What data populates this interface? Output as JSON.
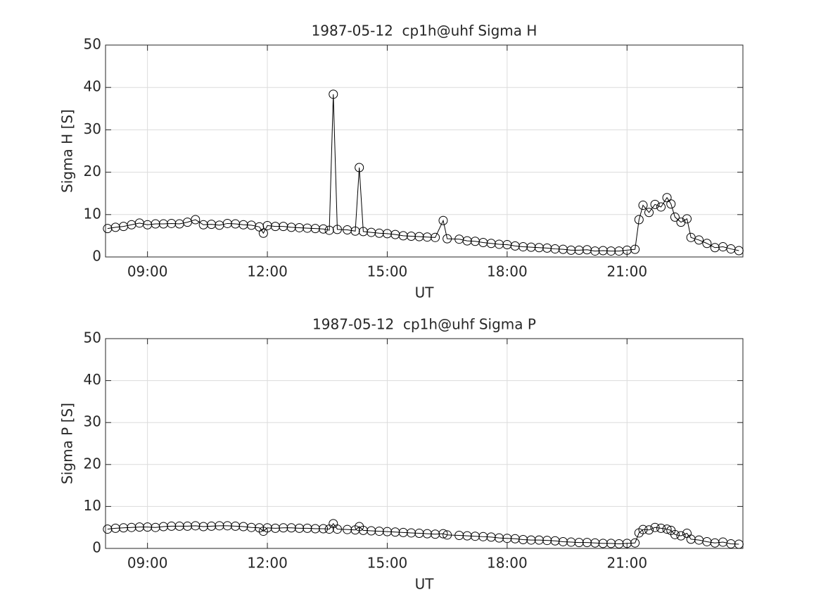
{
  "chart_data": [
    {
      "type": "line",
      "title": "1987-05-12  cp1h@uhf Sigma H",
      "xlabel": "UT",
      "ylabel": "Sigma H [S]",
      "color": "#000000",
      "marker": "o",
      "grid": true,
      "x": [
        8.0,
        8.2,
        8.4,
        8.6,
        8.8,
        9.0,
        9.2,
        9.4,
        9.6,
        9.8,
        10.0,
        10.2,
        10.4,
        10.6,
        10.8,
        11.0,
        11.2,
        11.4,
        11.6,
        11.8,
        11.9,
        12.0,
        12.2,
        12.4,
        12.6,
        12.8,
        13.0,
        13.2,
        13.4,
        13.55,
        13.65,
        13.75,
        14.0,
        14.2,
        14.3,
        14.4,
        14.6,
        14.8,
        15.0,
        15.2,
        15.4,
        15.6,
        15.8,
        16.0,
        16.2,
        16.4,
        16.5,
        16.8,
        17.0,
        17.2,
        17.4,
        17.6,
        17.8,
        18.0,
        18.2,
        18.4,
        18.6,
        18.8,
        19.0,
        19.2,
        19.4,
        19.6,
        19.8,
        20.0,
        20.2,
        20.4,
        20.6,
        20.8,
        21.0,
        21.2,
        21.3,
        21.4,
        21.55,
        21.7,
        21.85,
        22.0,
        22.1,
        22.2,
        22.35,
        22.5,
        22.6,
        22.8,
        23.0,
        23.2,
        23.4,
        23.6,
        23.8
      ],
      "values": [
        6.7,
        7.0,
        7.2,
        7.6,
        8.0,
        7.6,
        7.8,
        7.8,
        7.9,
        7.8,
        8.2,
        8.8,
        7.6,
        7.7,
        7.5,
        7.9,
        7.8,
        7.6,
        7.5,
        7.1,
        5.6,
        7.4,
        7.2,
        7.2,
        7.0,
        6.9,
        6.8,
        6.7,
        6.6,
        6.3,
        38.4,
        6.5,
        6.4,
        6.1,
        21.1,
        6.0,
        5.8,
        5.6,
        5.5,
        5.3,
        5.0,
        4.9,
        4.8,
        4.7,
        4.6,
        8.6,
        4.3,
        4.2,
        3.8,
        3.7,
        3.4,
        3.2,
        3.0,
        2.9,
        2.6,
        2.4,
        2.3,
        2.2,
        2.1,
        1.9,
        1.8,
        1.6,
        1.6,
        1.7,
        1.4,
        1.5,
        1.4,
        1.4,
        1.6,
        1.8,
        8.8,
        12.2,
        10.5,
        12.4,
        11.8,
        14.0,
        12.5,
        9.4,
        8.2,
        9.0,
        4.6,
        4.0,
        3.2,
        2.2,
        2.4,
        1.9,
        1.5
      ],
      "xlim": [
        7.95,
        23.9
      ],
      "xticks": [
        {
          "value": 9,
          "label": "09:00"
        },
        {
          "value": 12,
          "label": "12:00"
        },
        {
          "value": 15,
          "label": "15:00"
        },
        {
          "value": 18,
          "label": "18:00"
        },
        {
          "value": 21,
          "label": "21:00"
        }
      ],
      "ylim": [
        0,
        50
      ],
      "yticks": [
        0,
        10,
        20,
        30,
        40,
        50
      ]
    },
    {
      "type": "line",
      "title": "1987-05-12  cp1h@uhf Sigma P",
      "xlabel": "UT",
      "ylabel": "Sigma P [S]",
      "color": "#000000",
      "marker": "o",
      "grid": true,
      "x": [
        8.0,
        8.2,
        8.4,
        8.6,
        8.8,
        9.0,
        9.2,
        9.4,
        9.6,
        9.8,
        10.0,
        10.2,
        10.4,
        10.6,
        10.8,
        11.0,
        11.2,
        11.4,
        11.6,
        11.8,
        11.9,
        12.0,
        12.2,
        12.4,
        12.6,
        12.8,
        13.0,
        13.2,
        13.4,
        13.55,
        13.65,
        13.75,
        14.0,
        14.2,
        14.3,
        14.4,
        14.6,
        14.8,
        15.0,
        15.2,
        15.4,
        15.6,
        15.8,
        16.0,
        16.2,
        16.4,
        16.5,
        16.8,
        17.0,
        17.2,
        17.4,
        17.6,
        17.8,
        18.0,
        18.2,
        18.4,
        18.6,
        18.8,
        19.0,
        19.2,
        19.4,
        19.6,
        19.8,
        20.0,
        20.2,
        20.4,
        20.6,
        20.8,
        21.0,
        21.2,
        21.3,
        21.4,
        21.55,
        21.7,
        21.85,
        22.0,
        22.1,
        22.2,
        22.35,
        22.5,
        22.6,
        22.8,
        23.0,
        23.2,
        23.4,
        23.6,
        23.8
      ],
      "values": [
        4.6,
        4.8,
        4.9,
        5.0,
        5.1,
        5.1,
        5.0,
        5.2,
        5.3,
        5.3,
        5.3,
        5.4,
        5.2,
        5.3,
        5.4,
        5.4,
        5.3,
        5.2,
        5.0,
        4.9,
        4.1,
        4.9,
        4.8,
        4.9,
        4.9,
        4.8,
        4.8,
        4.7,
        4.7,
        4.6,
        5.9,
        4.6,
        4.5,
        4.4,
        5.2,
        4.3,
        4.2,
        4.1,
        4.0,
        3.9,
        3.8,
        3.7,
        3.6,
        3.5,
        3.4,
        3.5,
        3.2,
        3.1,
        3.0,
        2.9,
        2.8,
        2.7,
        2.5,
        2.4,
        2.3,
        2.1,
        2.0,
        2.0,
        1.9,
        1.8,
        1.6,
        1.5,
        1.4,
        1.4,
        1.3,
        1.2,
        1.2,
        1.1,
        1.2,
        1.3,
        3.7,
        4.5,
        4.4,
        5.0,
        4.8,
        4.6,
        4.3,
        3.3,
        3.0,
        3.6,
        2.2,
        2.0,
        1.6,
        1.3,
        1.5,
        1.1,
        1.0
      ],
      "xlim": [
        7.95,
        23.9
      ],
      "xticks": [
        {
          "value": 9,
          "label": "09:00"
        },
        {
          "value": 12,
          "label": "12:00"
        },
        {
          "value": 15,
          "label": "15:00"
        },
        {
          "value": 18,
          "label": "18:00"
        },
        {
          "value": 21,
          "label": "21:00"
        }
      ],
      "ylim": [
        0,
        50
      ],
      "yticks": [
        0,
        10,
        20,
        30,
        40,
        50
      ]
    }
  ]
}
